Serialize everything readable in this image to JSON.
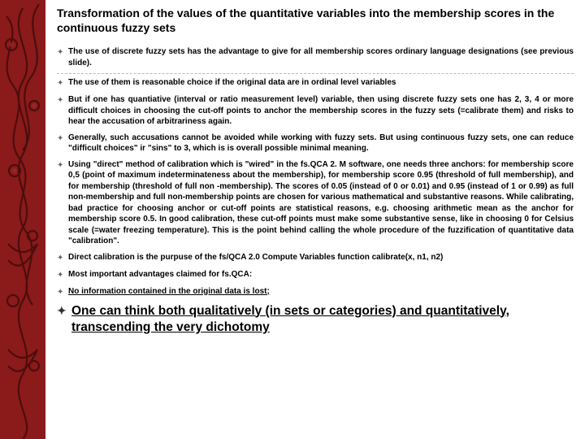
{
  "sidebar": {
    "bg": "#8b1a1a",
    "pattern_stroke": "#5a0f0f",
    "pattern_fill": "#6b1212"
  },
  "title": "Transformation of the values of the quantitative variables into the membership scores in the continuous fuzzy sets",
  "bullets": [
    {
      "text": "The use of discrete fuzzy sets has the advantage to give for all membership scores ordinary language designations (see previous slide).",
      "sep": true
    },
    {
      "text": "The use of them is reasonable choice if the original data are in ordinal level variables",
      "sep": false
    },
    {
      "text": "But if one has quantiative (interval or ratio measurement level) variable, then using discrete fuzzy sets one has 2, 3, 4  or more difficult choices in choosing the cut-off points to anchor the membership scores in the fuzzy sets (=calibrate them) and risks to hear the accusation of arbitrariness again.",
      "sep": false
    },
    {
      "text": "Generally, such accusations cannot be avoided while working with fuzzy sets. But using continuous fuzzy sets, one can reduce \"difficult choices\" ir \"sins\" to 3, which is is overall possible minimal meaning.",
      "sep": false
    },
    {
      "text": "Using \"direct\" method of calibration which is \"wired\" in the fs.QCA 2. M software, one needs three anchors: for membership score 0,5 (point of maximum indeterminateness about the membership), for membership score 0.95 (threshold of full membership), and for membership (threshold of full non -membership). The scores of 0.05 (instead of 0 or 0.01) and 0.95 (instead of 1 or 0.99) as full non-membership and full non-membership points are chosen for various mathematical and substantive reasons.  While calibrating, bad practice for choosing anchor or cut-off points are statistical reasons,  e.g.  choosing arithmetic mean as the anchor for membership score 0.5.  In good calibration, these cut-off points must make some substantive sense, like in choosing 0 for Celsius scale (=water freezing temperature). This is the point behind calling the whole procedure of the fuzzification of quantitative data \"calibration\".",
      "sep": false
    },
    {
      "text": "Direct calibration is the purpuse of the fs/QCA 2.0 Compute Variables function calibrate(x, n1, n2)",
      "sep": false
    },
    {
      "text": "Most important advantages claimed for fs.QCA:",
      "sep": false
    },
    {
      "text": "No information contained in the original data is lost;",
      "underline": true,
      "sep": false
    }
  ],
  "final": "One can think both qualitatively (in sets or categories) and quantitatively,  transcending the very dichotomy"
}
